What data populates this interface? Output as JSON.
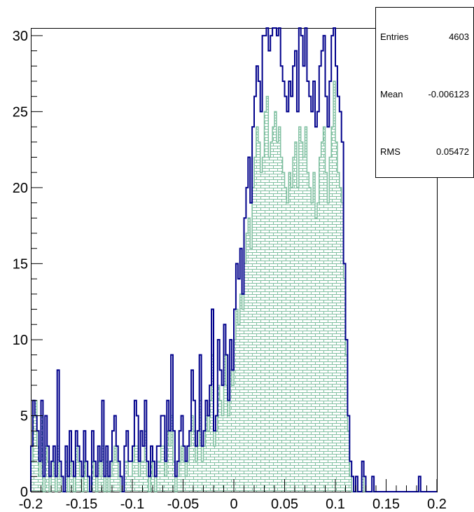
{
  "stats": {
    "entries_label": "Entries",
    "entries_value": "4603",
    "mean_label": "Mean",
    "mean_value": "-0.006123",
    "rms_label": "RMS",
    "rms_value": "0.05472"
  },
  "colors": {
    "outline": "#00008b",
    "fill_hatch": "#7fbfa0",
    "axis": "#000000"
  },
  "chart_data": {
    "type": "histogram",
    "title": "",
    "xlabel": "",
    "ylabel": "",
    "xlim": [
      -0.2,
      0.2
    ],
    "ylim": [
      0,
      30.5
    ],
    "x_tick_labels": [
      "-0.2",
      "-0.15",
      "-0.1",
      "-0.05",
      "0",
      "0.05",
      "0.1",
      "0.15",
      "0.2"
    ],
    "x_ticks": [
      -0.2,
      -0.15,
      -0.1,
      -0.05,
      0,
      0.05,
      0.1,
      0.15,
      0.2
    ],
    "y_tick_labels": [
      "0",
      "5",
      "10",
      "15",
      "20",
      "25",
      "30"
    ],
    "y_ticks": [
      0,
      5,
      10,
      15,
      20,
      25,
      30
    ],
    "bin_width": 0.002,
    "series": [
      {
        "style": "outline",
        "color": "#00008b",
        "values": [
          3,
          6,
          5,
          4,
          2,
          6,
          1,
          5,
          3,
          1,
          2,
          3,
          1,
          8,
          2,
          1,
          0,
          3,
          1,
          4,
          2,
          1,
          4,
          3,
          2,
          1,
          4,
          2,
          1,
          0,
          4,
          2,
          1,
          3,
          2,
          6,
          1,
          3,
          1,
          2,
          4,
          5,
          3,
          2,
          1,
          0,
          3,
          4,
          2,
          2,
          3,
          6,
          5,
          2,
          4,
          3,
          6,
          2,
          1,
          3,
          2,
          1,
          3,
          3,
          5,
          5,
          2,
          6,
          4,
          9,
          4,
          1,
          2,
          4,
          5,
          3,
          2,
          3,
          4,
          8,
          6,
          3,
          4,
          9,
          3,
          4,
          6,
          5,
          7,
          12,
          4,
          5,
          10,
          8,
          7,
          11,
          9,
          6,
          10,
          8,
          12,
          15,
          14,
          16,
          13,
          18,
          20,
          22,
          19,
          24,
          26,
          28,
          27,
          25,
          30,
          30,
          33,
          29,
          30,
          31,
          32,
          30,
          31,
          28,
          27,
          26,
          25,
          27,
          26,
          28,
          29,
          25,
          32,
          30,
          28,
          31,
          27,
          26,
          25,
          27,
          24,
          25,
          28,
          29,
          30,
          26,
          24,
          27,
          30,
          33,
          28,
          26,
          25,
          23,
          15,
          10,
          5,
          2,
          1,
          0,
          1,
          0,
          0,
          2,
          1,
          0,
          0,
          0,
          1,
          0,
          0,
          0,
          0,
          0,
          0,
          0,
          0,
          0,
          0,
          0,
          0,
          0,
          0,
          0,
          0,
          0,
          0,
          0,
          0,
          0,
          0,
          1,
          0,
          0,
          0,
          0,
          0,
          0,
          0,
          0
        ]
      },
      {
        "style": "hatched",
        "color": "#7fbfa0",
        "values": [
          2,
          5,
          6,
          3,
          1,
          5,
          0,
          3,
          2,
          0,
          1,
          2,
          0,
          3,
          1,
          0,
          0,
          2,
          0,
          2,
          1,
          0,
          3,
          2,
          1,
          0,
          2,
          1,
          0,
          0,
          2,
          1,
          0,
          2,
          1,
          3,
          0,
          2,
          0,
          1,
          2,
          3,
          2,
          1,
          0,
          0,
          2,
          2,
          1,
          1,
          2,
          3,
          3,
          1,
          2,
          2,
          4,
          1,
          0,
          2,
          1,
          0,
          2,
          2,
          3,
          3,
          1,
          4,
          3,
          5,
          2,
          0,
          1,
          2,
          3,
          2,
          1,
          2,
          3,
          5,
          4,
          2,
          3,
          6,
          2,
          3,
          5,
          4,
          6,
          9,
          3,
          4,
          7,
          6,
          5,
          9,
          7,
          5,
          8,
          7,
          10,
          12,
          11,
          13,
          12,
          15,
          17,
          18,
          16,
          20,
          22,
          24,
          23,
          21,
          22,
          25,
          26,
          22,
          23,
          24,
          25,
          23,
          24,
          22,
          21,
          20,
          19,
          21,
          20,
          22,
          23,
          20,
          24,
          23,
          22,
          24,
          21,
          20,
          19,
          21,
          18,
          19,
          22,
          23,
          24,
          21,
          19,
          22,
          24,
          27,
          23,
          21,
          20,
          19,
          14,
          9,
          4,
          1,
          0,
          0,
          0,
          0,
          0,
          1,
          0,
          0,
          0,
          0,
          0,
          0,
          0,
          0,
          0,
          0,
          0,
          0,
          0,
          0,
          0,
          0,
          0,
          0,
          0,
          0,
          0,
          0,
          0,
          0,
          0,
          0,
          0,
          0,
          0,
          0,
          0,
          0,
          0,
          0,
          0,
          0
        ]
      }
    ]
  }
}
